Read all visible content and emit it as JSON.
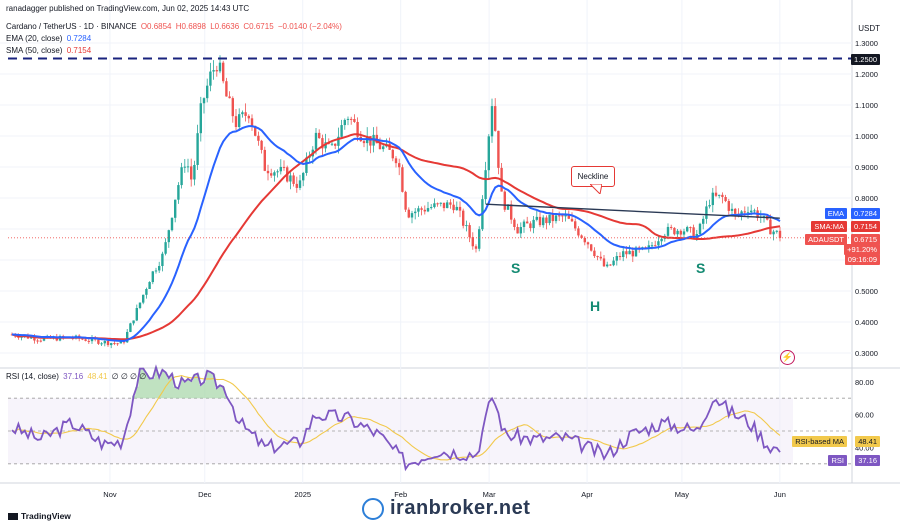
{
  "top_bar": "ranadagger published on TradingView.com, Jun 02, 2025 14:43 UTC",
  "currency": "USDT",
  "legend": {
    "symbol": "Cardano / TetherUS · 1D · BINANCE",
    "open": "O0.6854",
    "high": "H0.6898",
    "low": "L0.6636",
    "close": "C0.6715",
    "change": "−0.0140 (−2.04%)",
    "ema_label": "EMA (20, close)",
    "ema_value": "0.7284",
    "sma_label": "SMA (50, close)",
    "sma_value": "0.7154",
    "rsi_label": "RSI (14, close)",
    "rsi_value": "37.16",
    "rsi_ma_value": "48.41",
    "rsi_na": "∅ ∅ ∅ ∅"
  },
  "tags": {
    "resistance": "1.2500",
    "ema_name": "EMA",
    "ema": "0.7284",
    "sma_name": "SMA:MA",
    "sma": "0.7154",
    "price_name": "ADAUSDT",
    "price": "0.6715",
    "pct": "+91.20%",
    "countdown": "09:16:09",
    "rsi_ma_name": "RSI-based MA",
    "rsi_ma": "48.41",
    "rsi_name": "RSI",
    "rsi": "37.16"
  },
  "annotations": {
    "neckline": "Neckline",
    "left_shoulder": "S",
    "head": "H",
    "right_shoulder": "S"
  },
  "footer": {
    "tradingview": "TradingView",
    "brand": "iranbroker.net"
  },
  "colors": {
    "up": "#26a69a",
    "down": "#ef5350",
    "ema": "#2962ff",
    "sma": "#e53935",
    "rsi": "#7e57c2",
    "rsi_ma": "#f2c94c",
    "resistance": "#1a237e",
    "pattern": "#138a72"
  },
  "chart_data": [
    {
      "type": "candlestick",
      "title": "Cardano / TetherUS · 1D · BINANCE",
      "y_axis_ticks": [
        0.3,
        0.4,
        0.5,
        0.6,
        0.7,
        0.8,
        0.9,
        1.0,
        1.1,
        1.2,
        1.3
      ],
      "ylim": [
        0.27,
        1.33
      ],
      "x_tick_labels": [
        "Nov",
        "Dec",
        "2025",
        "Feb",
        "Mar",
        "Apr",
        "May",
        "Jun"
      ],
      "grid": true,
      "horizontal_line": 1.25,
      "close_path": [
        {
          "date": "2024-10-01",
          "value": 0.36
        },
        {
          "date": "2024-10-10",
          "value": 0.345
        },
        {
          "date": "2024-10-20",
          "value": 0.35
        },
        {
          "date": "2024-10-30",
          "value": 0.335
        },
        {
          "date": "2024-11-05",
          "value": 0.33
        },
        {
          "date": "2024-11-10",
          "value": 0.45
        },
        {
          "date": "2024-11-14",
          "value": 0.55
        },
        {
          "date": "2024-11-18",
          "value": 0.62
        },
        {
          "date": "2024-11-22",
          "value": 0.82
        },
        {
          "date": "2024-11-25",
          "value": 0.93
        },
        {
          "date": "2024-11-27",
          "value": 0.85
        },
        {
          "date": "2024-11-30",
          "value": 1.1
        },
        {
          "date": "2024-12-03",
          "value": 1.2
        },
        {
          "date": "2024-12-05",
          "value": 1.24
        },
        {
          "date": "2024-12-08",
          "value": 1.12
        },
        {
          "date": "2024-12-11",
          "value": 1.04
        },
        {
          "date": "2024-12-15",
          "value": 1.08
        },
        {
          "date": "2024-12-20",
          "value": 0.9
        },
        {
          "date": "2024-12-26",
          "value": 0.88
        },
        {
          "date": "2024-12-31",
          "value": 0.84
        },
        {
          "date": "2025-01-05",
          "value": 1.0
        },
        {
          "date": "2025-01-10",
          "value": 0.95
        },
        {
          "date": "2025-01-15",
          "value": 1.07
        },
        {
          "date": "2025-01-20",
          "value": 1.0
        },
        {
          "date": "2025-01-25",
          "value": 0.97
        },
        {
          "date": "2025-01-31",
          "value": 0.93
        },
        {
          "date": "2025-02-03",
          "value": 0.75
        },
        {
          "date": "2025-02-10",
          "value": 0.77
        },
        {
          "date": "2025-02-18",
          "value": 0.78
        },
        {
          "date": "2025-02-25",
          "value": 0.63
        },
        {
          "date": "2025-03-02",
          "value": 1.12
        },
        {
          "date": "2025-03-05",
          "value": 0.8
        },
        {
          "date": "2025-03-10",
          "value": 0.7
        },
        {
          "date": "2025-03-15",
          "value": 0.72
        },
        {
          "date": "2025-03-25",
          "value": 0.74
        },
        {
          "date": "2025-04-01",
          "value": 0.66
        },
        {
          "date": "2025-04-07",
          "value": 0.57
        },
        {
          "date": "2025-04-12",
          "value": 0.62
        },
        {
          "date": "2025-04-20",
          "value": 0.63
        },
        {
          "date": "2025-04-25",
          "value": 0.69
        },
        {
          "date": "2025-05-01",
          "value": 0.7
        },
        {
          "date": "2025-05-06",
          "value": 0.68
        },
        {
          "date": "2025-05-10",
          "value": 0.8
        },
        {
          "date": "2025-05-14",
          "value": 0.8
        },
        {
          "date": "2025-05-18",
          "value": 0.74
        },
        {
          "date": "2025-05-22",
          "value": 0.77
        },
        {
          "date": "2025-05-26",
          "value": 0.74
        },
        {
          "date": "2025-05-29",
          "value": 0.7
        },
        {
          "date": "2025-06-02",
          "value": 0.6715
        }
      ],
      "series": [
        {
          "name": "EMA (20, close)",
          "last_value": 0.7284
        },
        {
          "name": "SMA (50, close)",
          "last_value": 0.7154
        }
      ]
    },
    {
      "type": "line",
      "title": "RSI (14, close)",
      "y_axis_ticks": [
        40,
        60,
        80
      ],
      "ylim": [
        25,
        90
      ],
      "rsi_path": [
        {
          "date": "2024-10-01",
          "value": 52
        },
        {
          "date": "2024-10-10",
          "value": 45
        },
        {
          "date": "2024-10-20",
          "value": 55
        },
        {
          "date": "2024-10-30",
          "value": 42
        },
        {
          "date": "2024-11-05",
          "value": 44
        },
        {
          "date": "2024-11-10",
          "value": 84
        },
        {
          "date": "2024-11-18",
          "value": 86
        },
        {
          "date": "2024-11-24",
          "value": 78
        },
        {
          "date": "2024-12-02",
          "value": 83
        },
        {
          "date": "2024-12-08",
          "value": 75
        },
        {
          "date": "2024-12-12",
          "value": 55
        },
        {
          "date": "2024-12-20",
          "value": 40
        },
        {
          "date": "2024-12-31",
          "value": 43
        },
        {
          "date": "2025-01-05",
          "value": 60
        },
        {
          "date": "2025-01-15",
          "value": 58
        },
        {
          "date": "2025-01-25",
          "value": 48
        },
        {
          "date": "2025-02-03",
          "value": 30
        },
        {
          "date": "2025-02-12",
          "value": 38
        },
        {
          "date": "2025-02-25",
          "value": 36
        },
        {
          "date": "2025-03-02",
          "value": 72
        },
        {
          "date": "2025-03-06",
          "value": 48
        },
        {
          "date": "2025-03-15",
          "value": 45
        },
        {
          "date": "2025-03-25",
          "value": 46
        },
        {
          "date": "2025-04-07",
          "value": 35
        },
        {
          "date": "2025-04-15",
          "value": 48
        },
        {
          "date": "2025-04-25",
          "value": 55
        },
        {
          "date": "2025-05-06",
          "value": 50
        },
        {
          "date": "2025-05-11",
          "value": 72
        },
        {
          "date": "2025-05-16",
          "value": 62
        },
        {
          "date": "2025-05-22",
          "value": 56
        },
        {
          "date": "2025-05-28",
          "value": 42
        },
        {
          "date": "2025-06-02",
          "value": 37.16
        }
      ],
      "series": [
        {
          "name": "RSI (14, close)",
          "last_value": 37.16
        },
        {
          "name": "RSI-based MA",
          "last_value": 48.41
        }
      ]
    }
  ]
}
